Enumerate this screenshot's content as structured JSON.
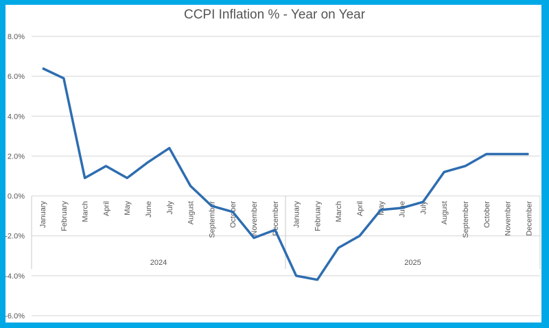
{
  "chart_data": {
    "type": "line",
    "title": "CCPI Inflation % - Year on Year",
    "xlabel": "",
    "ylabel": "",
    "ylim": [
      -6,
      8
    ],
    "yticks": [
      -6,
      -4,
      -2,
      0,
      2,
      4,
      6,
      8
    ],
    "ytick_labels": [
      "-6.0%",
      "-4.0%",
      "-2.0%",
      "0.0%",
      "2.0%",
      "4.0%",
      "6.0%",
      "8.0%"
    ],
    "grid": true,
    "legend": "none",
    "color": "#2e6db0",
    "groups": [
      {
        "label": "2024",
        "categories": [
          "January",
          "February",
          "March",
          "April",
          "May",
          "June",
          "July",
          "August",
          "September",
          "October",
          "November",
          "December"
        ]
      },
      {
        "label": "2025",
        "categories": [
          "January",
          "February",
          "March",
          "April",
          "May",
          "June",
          "July",
          "August",
          "September",
          "October",
          "November",
          "December"
        ]
      }
    ],
    "series": [
      {
        "name": "CCPI Inflation %",
        "values": [
          6.4,
          5.9,
          0.9,
          1.5,
          0.9,
          1.7,
          2.4,
          0.5,
          -0.5,
          -0.8,
          -2.1,
          -1.7,
          -4.0,
          -4.2,
          -2.6,
          -2.0,
          -0.7,
          -0.6,
          -0.3,
          1.2,
          1.5,
          2.1,
          2.1,
          2.1
        ]
      }
    ]
  }
}
